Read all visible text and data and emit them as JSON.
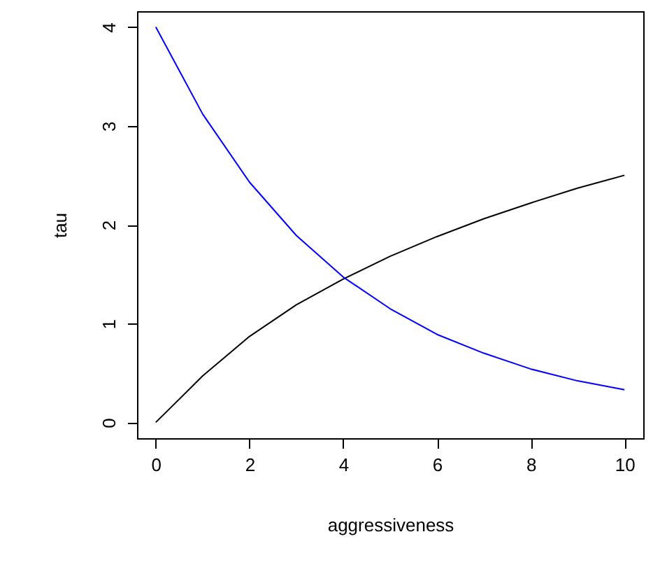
{
  "chart_data": {
    "type": "line",
    "xlabel": "aggressiveness",
    "ylabel": "tau",
    "x": [
      0,
      1,
      2,
      3,
      4,
      5,
      6,
      7,
      8,
      9,
      10
    ],
    "series": [
      {
        "color": "#000000",
        "values": [
          0,
          0.47,
          0.87,
          1.19,
          1.45,
          1.68,
          1.88,
          2.06,
          2.22,
          2.37,
          2.5
        ]
      },
      {
        "color": "#0000ff",
        "values": [
          4,
          3.12,
          2.43,
          1.89,
          1.47,
          1.15,
          0.89,
          0.7,
          0.54,
          0.42,
          0.33
        ]
      }
    ],
    "xlim": [
      -0.4,
      10.4
    ],
    "ylim": [
      -0.16,
      4.16
    ],
    "xticks": [
      0,
      2,
      4,
      6,
      8,
      10
    ],
    "yticks": [
      0,
      1,
      2,
      3,
      4
    ],
    "grid": false,
    "marker": "none",
    "line_style": "solid"
  }
}
